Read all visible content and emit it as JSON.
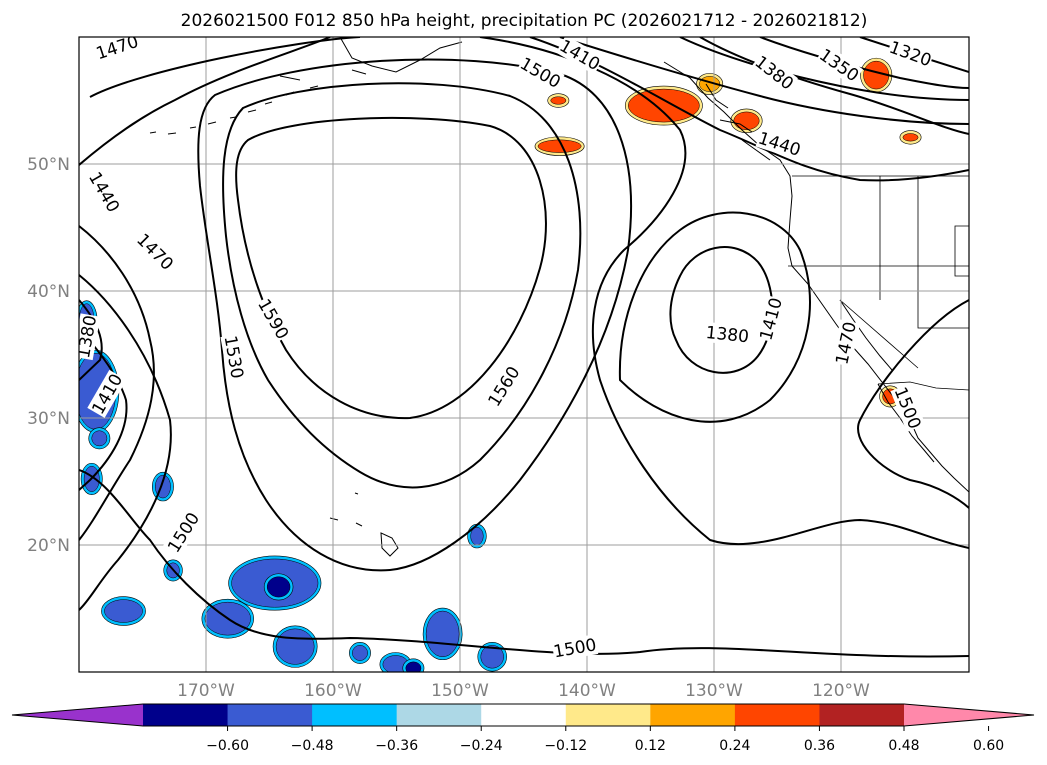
{
  "chart_data": {
    "type": "contour map",
    "title": "2026021500 F012 850 hPa height, precipitation PC (2026021712 - 2026021812)",
    "map": {
      "lon_range": [
        -180,
        -110
      ],
      "lat_range": [
        10,
        60
      ],
      "grid": true,
      "x_ticks": [
        "170°W",
        "160°W",
        "150°W",
        "140°W",
        "130°W",
        "120°W"
      ],
      "y_ticks": [
        "50°N",
        "40°N",
        "30°N",
        "20°N"
      ]
    },
    "height_contour_labels": [
      {
        "value": "1470",
        "lon": -177.0,
        "lat": 59.2,
        "angle": -18
      },
      {
        "value": "1410",
        "lon": -140.6,
        "lat": 58.6,
        "angle": 30
      },
      {
        "value": "1500",
        "lon": -143.7,
        "lat": 57.2,
        "angle": 30
      },
      {
        "value": "1380",
        "lon": -125.3,
        "lat": 57.2,
        "angle": 38
      },
      {
        "value": "1350",
        "lon": -120.2,
        "lat": 57.8,
        "angle": 35
      },
      {
        "value": "1320",
        "lon": -114.6,
        "lat": 58.7,
        "angle": 20
      },
      {
        "value": "1440",
        "lon": -124.9,
        "lat": 51.6,
        "angle": 18
      },
      {
        "value": "1440",
        "lon": -178.0,
        "lat": 47.8,
        "angle": 60
      },
      {
        "value": "1470",
        "lon": -174.0,
        "lat": 43.1,
        "angle": 45
      },
      {
        "value": "1590",
        "lon": -164.7,
        "lat": 37.8,
        "angle": 60
      },
      {
        "value": "1380",
        "lon": -179.4,
        "lat": 36.4,
        "angle": -80
      },
      {
        "value": "1380",
        "lon": -129.0,
        "lat": 36.6,
        "angle": 6
      },
      {
        "value": "1410",
        "lon": -125.6,
        "lat": 37.8,
        "angle": -75
      },
      {
        "value": "1470",
        "lon": -119.7,
        "lat": 35.9,
        "angle": -78
      },
      {
        "value": "1530",
        "lon": -167.8,
        "lat": 34.8,
        "angle": 80
      },
      {
        "value": "1560",
        "lon": -146.6,
        "lat": 32.5,
        "angle": -58
      },
      {
        "value": "1410",
        "lon": -177.8,
        "lat": 31.9,
        "angle": -60
      },
      {
        "value": "1500",
        "lon": -114.8,
        "lat": 30.8,
        "angle": 68
      },
      {
        "value": "1500",
        "lon": -171.8,
        "lat": 21.0,
        "angle": -58
      },
      {
        "value": "1500",
        "lon": -141.0,
        "lat": 11.9,
        "angle": -10
      }
    ],
    "colorbar": {
      "ticks": [
        "−0.60",
        "−0.48",
        "−0.36",
        "−0.24",
        "−0.12",
        "0.12",
        "0.24",
        "0.36",
        "0.48",
        "0.60"
      ],
      "levels": [
        -0.6,
        -0.48,
        -0.36,
        -0.24,
        -0.12,
        0.12,
        0.24,
        0.36,
        0.48,
        0.6
      ],
      "colors": [
        "#9932cc",
        "#00008b",
        "#3a5bd2",
        "#00bfff",
        "#add8e6",
        "#ffffff",
        "#ffe98a",
        "#ffa500",
        "#ff4500",
        "#b22222",
        "#ff88aa"
      ],
      "extend": "both"
    },
    "precipitation_areas": [
      {
        "sign": "positive",
        "level": 0.36,
        "lon": -134.0,
        "lat": 54.6,
        "rx": 2.8,
        "ry": 1.3
      },
      {
        "sign": "positive",
        "level": 0.36,
        "lon": -142.2,
        "lat": 51.4,
        "rx": 1.7,
        "ry": 0.5
      },
      {
        "sign": "positive",
        "level": 0.36,
        "lon": -142.3,
        "lat": 55.0,
        "rx": 0.6,
        "ry": 0.3
      },
      {
        "sign": "positive",
        "level": 0.36,
        "lon": -127.5,
        "lat": 53.4,
        "rx": 1.0,
        "ry": 0.7
      },
      {
        "sign": "positive",
        "level": 0.36,
        "lon": -117.3,
        "lat": 57.0,
        "rx": 1.0,
        "ry": 1.1
      },
      {
        "sign": "positive",
        "level": 0.36,
        "lon": -114.6,
        "lat": 52.1,
        "rx": 0.6,
        "ry": 0.3
      },
      {
        "sign": "positive",
        "level": 0.36,
        "lon": -116.2,
        "lat": 31.7,
        "rx": 0.6,
        "ry": 0.6
      },
      {
        "sign": "positive",
        "level": 0.24,
        "lon": -130.4,
        "lat": 56.3,
        "rx": 0.8,
        "ry": 0.6
      },
      {
        "sign": "negative",
        "level": -0.36,
        "lon": -178.7,
        "lat": 32.1,
        "rx": 1.6,
        "ry": 3.0
      },
      {
        "sign": "negative",
        "level": -0.36,
        "lon": -179.4,
        "lat": 37.6,
        "rx": 0.6,
        "ry": 1.4
      },
      {
        "sign": "negative",
        "level": -0.36,
        "lon": -178.4,
        "lat": 28.4,
        "rx": 0.6,
        "ry": 0.6
      },
      {
        "sign": "negative",
        "level": -0.36,
        "lon": -179.0,
        "lat": 25.2,
        "rx": 0.6,
        "ry": 1.0
      },
      {
        "sign": "negative",
        "level": -0.36,
        "lon": -173.4,
        "lat": 24.6,
        "rx": 0.6,
        "ry": 0.9
      },
      {
        "sign": "negative",
        "level": -0.36,
        "lon": -164.6,
        "lat": 17.0,
        "rx": 3.4,
        "ry": 1.9
      },
      {
        "sign": "negative",
        "level": -0.36,
        "lon": -168.3,
        "lat": 14.2,
        "rx": 1.8,
        "ry": 1.3
      },
      {
        "sign": "negative",
        "level": -0.36,
        "lon": -163.0,
        "lat": 12.0,
        "rx": 1.5,
        "ry": 1.4
      },
      {
        "sign": "negative",
        "level": -0.36,
        "lon": -176.5,
        "lat": 14.8,
        "rx": 1.5,
        "ry": 0.9
      },
      {
        "sign": "negative",
        "level": -0.36,
        "lon": -151.4,
        "lat": 13.0,
        "rx": 1.3,
        "ry": 1.8
      },
      {
        "sign": "negative",
        "level": -0.36,
        "lon": -147.5,
        "lat": 11.2,
        "rx": 0.9,
        "ry": 0.9
      },
      {
        "sign": "negative",
        "level": -0.36,
        "lon": -155.1,
        "lat": 10.6,
        "rx": 1.0,
        "ry": 0.7
      },
      {
        "sign": "negative",
        "level": -0.36,
        "lon": -157.9,
        "lat": 11.5,
        "rx": 0.6,
        "ry": 0.6
      },
      {
        "sign": "negative",
        "level": -0.36,
        "lon": -172.6,
        "lat": 18.0,
        "rx": 0.5,
        "ry": 0.6
      },
      {
        "sign": "negative",
        "level": -0.36,
        "lon": -148.7,
        "lat": 20.7,
        "rx": 0.5,
        "ry": 0.7
      },
      {
        "sign": "negative",
        "level": -0.48,
        "lon": -164.3,
        "lat": 16.7,
        "rx": 0.9,
        "ry": 0.8
      },
      {
        "sign": "negative",
        "level": -0.48,
        "lon": -153.7,
        "lat": 10.3,
        "rx": 0.6,
        "ry": 0.5
      }
    ]
  }
}
